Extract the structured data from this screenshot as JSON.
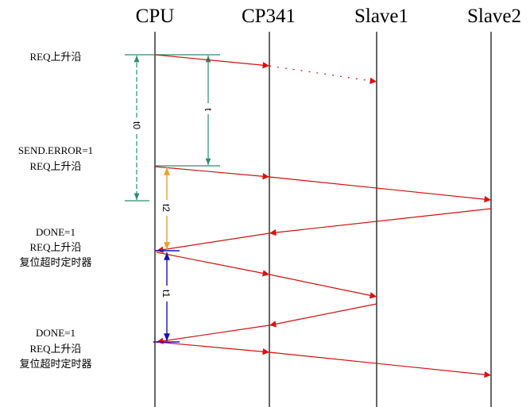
{
  "participants": [
    "CPU",
    "CP341",
    "Slave1",
    "Slave2"
  ],
  "events": {
    "e1": [
      "REQ上升沿"
    ],
    "e2": [
      "SEND.ERROR=1",
      "REQ上升沿"
    ],
    "e3": [
      "DONE=1",
      "REQ上升沿",
      "复位超时定时器"
    ],
    "e4": [
      "DONE=1",
      "REQ上升沿",
      "复位超时定时器"
    ]
  },
  "intervals": {
    "t0": "t0",
    "t": "t",
    "t2": "t2",
    "t1": "t1"
  },
  "colors": {
    "message": "#d01010",
    "timeout": "#2e8b6a",
    "t2": "#f0a020",
    "t1": "#1010c8"
  }
}
